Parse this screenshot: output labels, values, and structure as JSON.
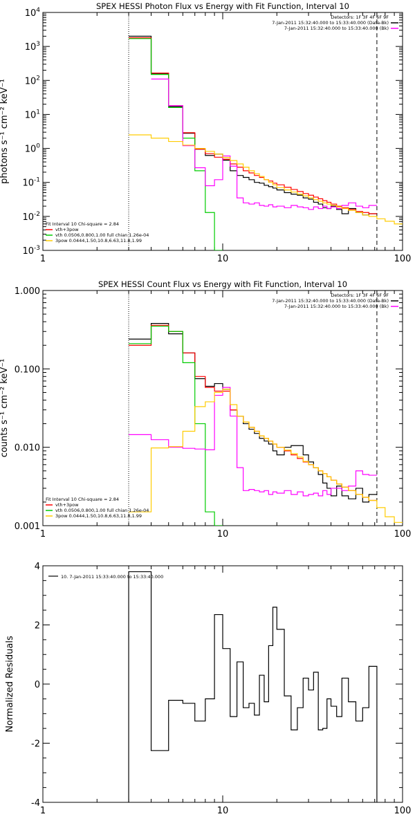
{
  "chart_data": [
    {
      "type": "line",
      "title": "SPEX HESSI Photon Flux vs Energy with Fit Function, Interval 10",
      "ylabel": "photons s⁻¹ cm⁻² keV⁻¹",
      "xlabel": "",
      "xscale": "log",
      "yscale": "log",
      "xlim": [
        1,
        100
      ],
      "ylim": [
        0.001,
        10000
      ],
      "xticks": [
        {
          "v": 1,
          "label": "1"
        },
        {
          "v": 10,
          "label": "10"
        },
        {
          "v": 100,
          "label": "100"
        }
      ],
      "yticks": [
        {
          "v": 0.001,
          "base": "10",
          "exp": "-3"
        },
        {
          "v": 0.01,
          "base": "10",
          "exp": "-2"
        },
        {
          "v": 0.1,
          "base": "10",
          "exp": "-1"
        },
        {
          "v": 1,
          "base": "10",
          "exp": "0"
        },
        {
          "v": 10,
          "base": "10",
          "exp": "1"
        },
        {
          "v": 100,
          "base": "10",
          "exp": "2"
        },
        {
          "v": 1000,
          "base": "10",
          "exp": "3"
        },
        {
          "v": 10000,
          "base": "10",
          "exp": "4"
        }
      ],
      "vlines": [
        {
          "x": 3.0,
          "style": "dotted"
        },
        {
          "x": 72,
          "style": "dashed"
        }
      ],
      "legend_right": [
        {
          "text": "Detectors: 1F 3F 4F 6F 9F",
          "color": ""
        },
        {
          "text": "7-Jan-2011 15:32:40.000 to 15:33:40.000 (Data-Bk)",
          "color": "#000000"
        },
        {
          "text": "7-Jan-2011 15:32:40.000 to 15:33:40.000 (Bk)",
          "color": "#ff00ff"
        }
      ],
      "legend_left": [
        {
          "text": "Fit Interval 10   Chi-square = 2.84",
          "color": ""
        },
        {
          "text": "vth+3pow",
          "color": "#ff0000"
        },
        {
          "text": "vth 0.0506,0.800,1.00  full chian 1.26e-04",
          "color": "#00cc00"
        },
        {
          "text": "3pow 0.0444,1.50,10.8,6.63,11.8,1.99",
          "color": "#ffcc00"
        }
      ],
      "series": [
        {
          "color": "#000000",
          "edges": [
            3,
            4,
            5,
            6,
            7,
            8,
            9,
            10,
            11,
            12,
            13,
            14,
            15,
            16,
            17,
            18,
            19,
            20,
            22,
            24,
            26,
            28,
            30,
            32,
            34,
            36,
            38,
            40,
            43,
            46,
            50,
            55,
            60,
            65,
            72
          ],
          "values": [
            2000,
            160,
            17,
            2.8,
            0.95,
            0.62,
            0.68,
            0.45,
            0.22,
            0.16,
            0.14,
            0.12,
            0.1,
            0.095,
            0.082,
            0.075,
            0.068,
            0.06,
            0.05,
            0.045,
            0.042,
            0.035,
            0.032,
            0.026,
            0.023,
            0.018,
            0.017,
            0.02,
            0.016,
            0.012,
            0.017,
            0.013,
            0.011,
            0.012
          ]
        },
        {
          "color": "#ff0000",
          "edges": [
            3,
            4,
            5,
            6,
            7,
            8,
            9,
            10,
            11,
            12,
            13,
            14,
            15,
            16,
            17,
            18,
            19,
            20,
            22,
            24,
            26,
            28,
            30,
            32,
            34,
            36,
            38,
            40,
            43,
            46,
            50,
            55,
            60,
            65,
            72
          ],
          "values": [
            1800,
            165,
            18,
            2.9,
            0.95,
            0.7,
            0.55,
            0.48,
            0.35,
            0.28,
            0.22,
            0.19,
            0.16,
            0.14,
            0.12,
            0.11,
            0.095,
            0.085,
            0.072,
            0.062,
            0.054,
            0.047,
            0.042,
            0.037,
            0.033,
            0.029,
            0.026,
            0.023,
            0.02,
            0.018,
            0.016,
            0.014,
            0.013,
            0.012
          ]
        },
        {
          "color": "#00cc00",
          "edges": [
            3,
            4,
            5,
            6,
            7,
            8,
            9,
            10
          ],
          "values": [
            1700,
            150,
            16,
            2.0,
            0.22,
            0.013,
            0.0005
          ]
        },
        {
          "color": "#ff00ff",
          "edges": [
            3,
            4,
            5,
            6,
            7,
            8,
            9,
            10,
            11,
            12,
            13,
            14,
            15,
            16,
            17,
            18,
            19,
            20,
            22,
            24,
            26,
            28,
            30,
            32,
            34,
            36,
            38,
            40,
            43,
            46,
            50,
            55,
            60,
            65,
            72
          ],
          "values": [
            null,
            110,
            18,
            1.2,
            0.27,
            0.08,
            0.12,
            0.6,
            0.3,
            0.035,
            0.025,
            0.023,
            0.025,
            0.021,
            0.02,
            0.022,
            0.019,
            0.02,
            0.018,
            0.021,
            0.019,
            0.018,
            0.016,
            0.019,
            0.017,
            0.02,
            0.017,
            0.019,
            0.017,
            0.021,
            0.025,
            0.02,
            0.018,
            0.021
          ]
        },
        {
          "color": "#ffcc00",
          "edges": [
            3,
            4,
            5,
            6,
            7,
            8,
            9,
            10,
            11,
            12,
            13,
            14,
            15,
            16,
            17,
            18,
            19,
            20,
            22,
            24,
            26,
            28,
            30,
            32,
            34,
            36,
            38,
            40,
            43,
            46,
            50,
            55,
            60,
            65,
            72,
            80,
            90,
            100
          ],
          "values": [
            2.5,
            2.0,
            1.6,
            1.25,
            1.0,
            0.82,
            0.68,
            0.54,
            0.44,
            0.35,
            0.28,
            0.22,
            0.18,
            0.15,
            0.12,
            0.1,
            0.085,
            0.07,
            0.06,
            0.052,
            0.045,
            0.04,
            0.035,
            0.031,
            0.028,
            0.025,
            0.023,
            0.021,
            0.019,
            0.017,
            0.015,
            0.013,
            0.011,
            0.01,
            0.0085,
            0.0072,
            0.006
          ]
        }
      ]
    },
    {
      "type": "line",
      "title": "SPEX HESSI Count Flux vs Energy with Fit Function, Interval 10",
      "ylabel": "counts s⁻¹ cm⁻² keV⁻¹",
      "xlabel": "",
      "xscale": "log",
      "yscale": "log",
      "xlim": [
        1,
        100
      ],
      "ylim": [
        0.001,
        1.0
      ],
      "xticks": [
        {
          "v": 1,
          "label": "1"
        },
        {
          "v": 10,
          "label": "10"
        },
        {
          "v": 100,
          "label": "100"
        }
      ],
      "yticks": [
        {
          "v": 0.001,
          "label": "0.001"
        },
        {
          "v": 0.01,
          "label": "0.010"
        },
        {
          "v": 0.1,
          "label": "0.100"
        },
        {
          "v": 1.0,
          "label": "1.000"
        }
      ],
      "vlines": [
        {
          "x": 3.0,
          "style": "dotted"
        },
        {
          "x": 72,
          "style": "dashed"
        }
      ],
      "legend_right": [
        {
          "text": "Detectors: 1F 3F 4F 6F 9F",
          "color": ""
        },
        {
          "text": "7-Jan-2011 15:32:40.000 to 15:33:40.000 (Data-Bk)",
          "color": "#000000"
        },
        {
          "text": "7-Jan-2011 15:32:40.000 to 15:33:40.000 (Bk)",
          "color": "#ff00ff"
        }
      ],
      "legend_left": [
        {
          "text": "Fit Interval 10   Chi-square = 2.84",
          "color": ""
        },
        {
          "text": "vth+3pow",
          "color": "#ff0000"
        },
        {
          "text": "vth 0.0506,0.800,1.00  full chian 1.26e-04",
          "color": "#00cc00"
        },
        {
          "text": "3pow 0.0444,1.50,10.8,6.63,11.8,1.99",
          "color": "#ffcc00"
        }
      ],
      "series": [
        {
          "color": "#000000",
          "edges": [
            3,
            4,
            5,
            6,
            7,
            8,
            9,
            10,
            11,
            12,
            13,
            14,
            15,
            16,
            17,
            18,
            19,
            20,
            22,
            24,
            26,
            28,
            30,
            32,
            34,
            36,
            38,
            40,
            43,
            46,
            50,
            55,
            60,
            65,
            72
          ],
          "values": [
            0.24,
            0.38,
            0.28,
            0.16,
            0.075,
            0.06,
            0.065,
            0.055,
            0.03,
            0.025,
            0.02,
            0.017,
            0.015,
            0.013,
            0.012,
            0.011,
            0.009,
            0.008,
            0.01,
            0.0105,
            0.0105,
            0.008,
            0.0065,
            0.0055,
            0.0045,
            0.0035,
            0.003,
            0.0024,
            0.0032,
            0.0024,
            0.0022,
            0.003,
            0.002,
            0.0025
          ]
        },
        {
          "color": "#ff0000",
          "edges": [
            3,
            4,
            5,
            6,
            7,
            8,
            9,
            10,
            11,
            12,
            13,
            14,
            15,
            16,
            17,
            18,
            19,
            20,
            22,
            24,
            26,
            28,
            30,
            32,
            34,
            36,
            38,
            40,
            43,
            46,
            50,
            55,
            60,
            65,
            72
          ],
          "values": [
            0.2,
            0.36,
            0.3,
            0.16,
            0.08,
            0.058,
            0.052,
            0.052,
            0.03,
            0.025,
            0.021,
            0.018,
            0.016,
            0.014,
            0.013,
            0.012,
            0.011,
            0.01,
            0.009,
            0.008,
            0.0072,
            0.0065,
            0.006,
            0.0055,
            0.005,
            0.0046,
            0.0042,
            0.0038,
            0.0034,
            0.0031,
            0.0028,
            0.0025,
            0.0023,
            0.0021
          ]
        },
        {
          "color": "#00cc00",
          "edges": [
            3,
            4,
            5,
            6,
            7,
            8,
            9,
            10
          ],
          "values": [
            0.21,
            0.35,
            0.3,
            0.12,
            0.02,
            0.0015,
            0.0001
          ]
        },
        {
          "color": "#ff00ff",
          "edges": [
            3,
            4,
            5,
            6,
            7,
            8,
            9,
            10,
            11,
            12,
            13,
            14,
            15,
            16,
            17,
            18,
            19,
            20,
            22,
            24,
            26,
            28,
            30,
            32,
            34,
            36,
            38,
            40,
            43,
            46,
            50,
            55,
            60,
            65,
            72
          ],
          "values": [
            0.0145,
            0.0125,
            0.01,
            0.0097,
            0.0095,
            0.0093,
            0.046,
            0.058,
            0.025,
            0.0055,
            0.0028,
            0.0029,
            0.0028,
            0.0027,
            0.0028,
            0.0025,
            0.0027,
            0.0026,
            0.0028,
            0.0025,
            0.0027,
            0.0024,
            0.0025,
            0.0026,
            0.0024,
            0.0028,
            0.0025,
            0.003,
            0.003,
            0.0028,
            0.0032,
            0.005,
            0.0045,
            0.0044
          ]
        },
        {
          "color": "#ffcc00",
          "edges": [
            3,
            4,
            5,
            6,
            7,
            8,
            9,
            10,
            11,
            12,
            13,
            14,
            15,
            16,
            17,
            18,
            19,
            20,
            22,
            24,
            26,
            28,
            30,
            32,
            34,
            36,
            38,
            40,
            43,
            46,
            50,
            55,
            60,
            65,
            72,
            80,
            90,
            100
          ],
          "values": [
            0.0015,
            0.0098,
            0.0102,
            0.016,
            0.033,
            0.038,
            0.05,
            0.055,
            0.035,
            0.025,
            0.021,
            0.018,
            0.016,
            0.014,
            0.013,
            0.012,
            0.011,
            0.01,
            0.0092,
            0.0083,
            0.0075,
            0.0066,
            0.006,
            0.0055,
            0.005,
            0.0046,
            0.0042,
            0.0038,
            0.0034,
            0.0031,
            0.0028,
            0.0025,
            0.0023,
            0.0021,
            0.0017,
            0.0013,
            0.0011
          ]
        }
      ]
    },
    {
      "type": "line",
      "title": "",
      "ylabel": "Normalized Residuals",
      "xlabel": "",
      "xscale": "log",
      "yscale": "linear",
      "xlim": [
        1,
        100
      ],
      "ylim": [
        -4,
        4
      ],
      "xticks": [
        {
          "v": 1,
          "label": "1"
        },
        {
          "v": 10,
          "label": "10"
        },
        {
          "v": 100,
          "label": "100"
        }
      ],
      "yticks": [
        {
          "v": -4,
          "label": "-4"
        },
        {
          "v": -2,
          "label": "-2"
        },
        {
          "v": 0,
          "label": "0"
        },
        {
          "v": 2,
          "label": "2"
        },
        {
          "v": 4,
          "label": "4"
        }
      ],
      "vlines": [],
      "legend_left": [
        {
          "text": "10.  7-Jan-2011 15:33:40.000 to 15:33:40.000",
          "color": "#000000"
        }
      ],
      "legend_right": [],
      "series": [
        {
          "color": "#000000",
          "drop_ends": true,
          "edges": [
            3,
            4,
            5,
            6,
            7,
            8,
            9,
            10,
            11,
            12,
            13,
            14,
            15,
            16,
            17,
            18,
            19,
            20,
            22,
            24,
            26,
            28,
            30,
            32,
            34,
            36,
            38,
            40,
            43,
            46,
            50,
            55,
            60,
            65,
            72
          ],
          "values": [
            3.8,
            -2.25,
            -0.55,
            -0.65,
            -1.25,
            -0.5,
            2.35,
            1.2,
            -1.1,
            0.75,
            -0.8,
            -0.65,
            -1.05,
            0.3,
            -0.6,
            1.3,
            2.6,
            1.85,
            -0.4,
            -1.55,
            -0.8,
            0.2,
            -0.2,
            0.4,
            -1.55,
            -1.5,
            -0.5,
            -0.75,
            -1.1,
            0.2,
            -0.6,
            -1.25,
            -0.8,
            0.6
          ]
        }
      ]
    }
  ]
}
